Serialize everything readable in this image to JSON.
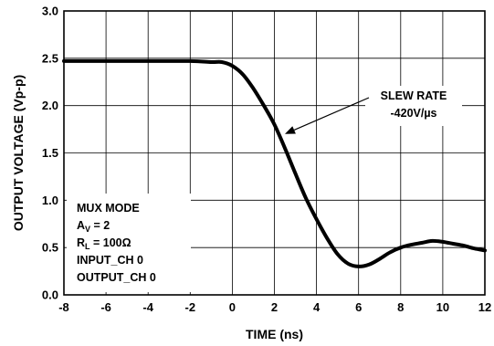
{
  "chart_data": {
    "type": "line",
    "xlabel": "TIME (ns)",
    "ylabel": "OUTPUT VOLTAGE (Vp-p)",
    "xlim": [
      -8,
      12
    ],
    "ylim": [
      0,
      3
    ],
    "xticks": [
      "-8",
      "-6",
      "-4",
      "-2",
      "0",
      "2",
      "4",
      "6",
      "8",
      "10",
      "12"
    ],
    "yticks": [
      "0.0",
      "0.5",
      "1.0",
      "1.5",
      "2.0",
      "2.5",
      "3.0"
    ],
    "grid": true,
    "series": [
      {
        "x": [
          -8,
          -6,
          -4,
          -2,
          -1,
          -0.5,
          0,
          0.5,
          1,
          1.5,
          2,
          2.5,
          3,
          3.5,
          4,
          4.5,
          5,
          5.5,
          6,
          6.5,
          7,
          7.5,
          8,
          8.5,
          9,
          9.5,
          10,
          10.5,
          11,
          11.5,
          12
        ],
        "y": [
          2.47,
          2.47,
          2.47,
          2.47,
          2.46,
          2.46,
          2.42,
          2.33,
          2.18,
          2.0,
          1.8,
          1.55,
          1.28,
          1.02,
          0.8,
          0.6,
          0.43,
          0.33,
          0.3,
          0.32,
          0.38,
          0.45,
          0.5,
          0.53,
          0.55,
          0.57,
          0.56,
          0.54,
          0.52,
          0.49,
          0.47
        ]
      }
    ],
    "annotations": {
      "slew_line1": "SLEW RATE",
      "slew_line2": "-420V/µs",
      "slew_point": [
        2.5,
        1.7
      ],
      "conditions": {
        "mode": "MUX MODE",
        "av_main": "A",
        "av_sub": "V",
        "av_value": " = 2",
        "rl_main": "R",
        "rl_sub": "L",
        "rl_value": " = 100Ω",
        "input": "INPUT_CH 0",
        "output": "OUTPUT_CH 0"
      }
    }
  }
}
